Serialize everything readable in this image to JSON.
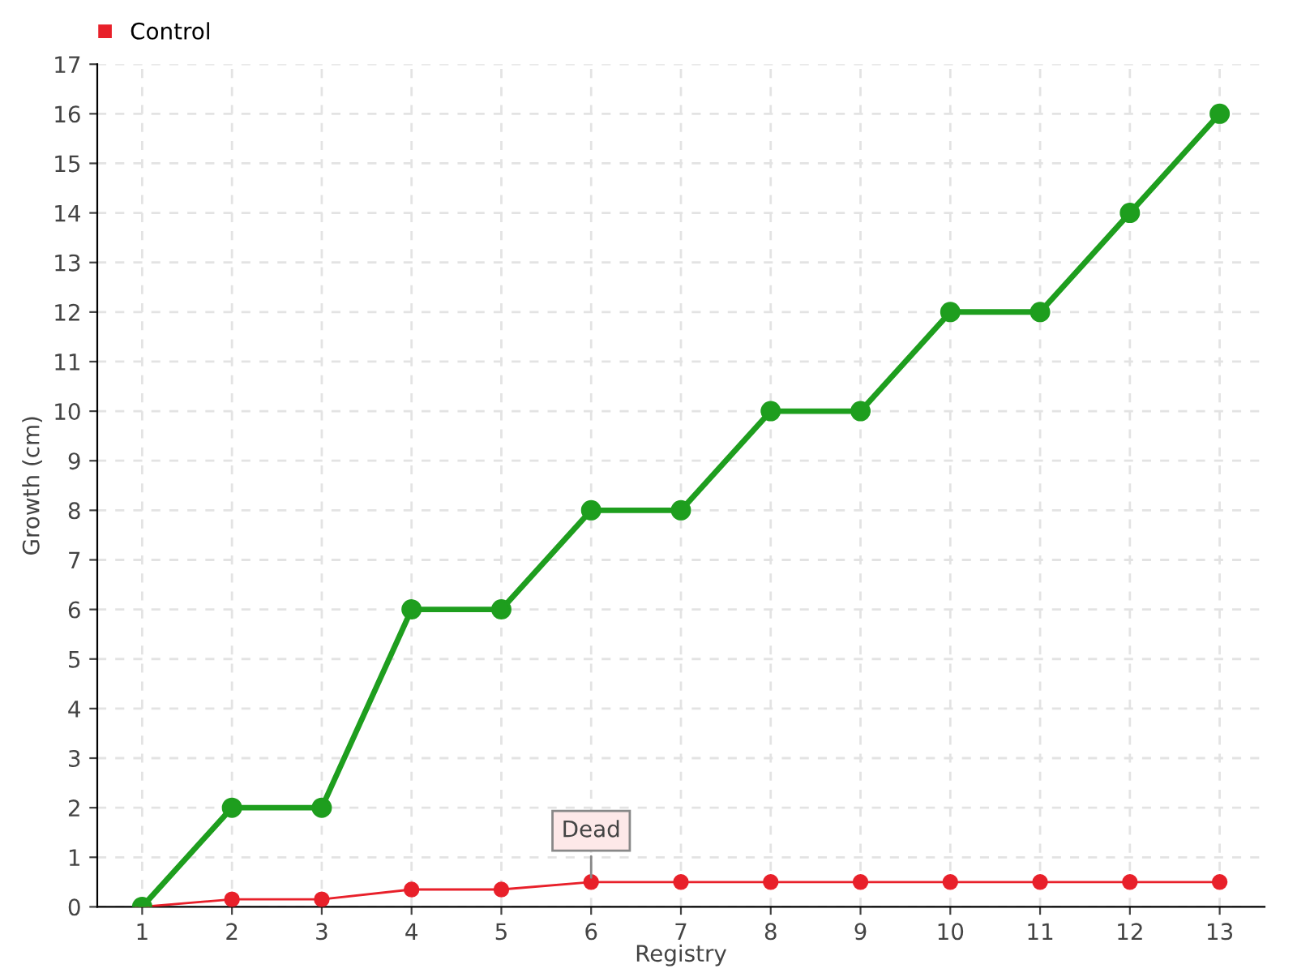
{
  "chart_data": {
    "type": "line",
    "xlabel": "Registry",
    "ylabel": "Growth (cm)",
    "categories": [
      "1",
      "2",
      "3",
      "4",
      "5",
      "6",
      "7",
      "8",
      "9",
      "10",
      "11",
      "12",
      "13"
    ],
    "series": [
      {
        "color": "#1e9e1e",
        "values": [
          0,
          2,
          2,
          6,
          6,
          8,
          8,
          10,
          10,
          12,
          12,
          14,
          16
        ]
      },
      {
        "name": "Control",
        "color": "#e8202a",
        "values": [
          0,
          0.15,
          0.15,
          0.35,
          0.35,
          0.5,
          0.5,
          0.5,
          0.5,
          0.5,
          0.5,
          0.5,
          0.5
        ]
      }
    ],
    "ylim": [
      0,
      17
    ],
    "yticks": [
      0,
      1,
      2,
      3,
      4,
      5,
      6,
      7,
      8,
      9,
      10,
      11,
      12,
      13,
      14,
      15,
      16,
      17
    ],
    "annotations": [
      {
        "text": "Dead",
        "x": "6",
        "y": 0.5
      }
    ],
    "grid": true,
    "legend": "top left",
    "marker": "circle",
    "line_style": "solid"
  }
}
